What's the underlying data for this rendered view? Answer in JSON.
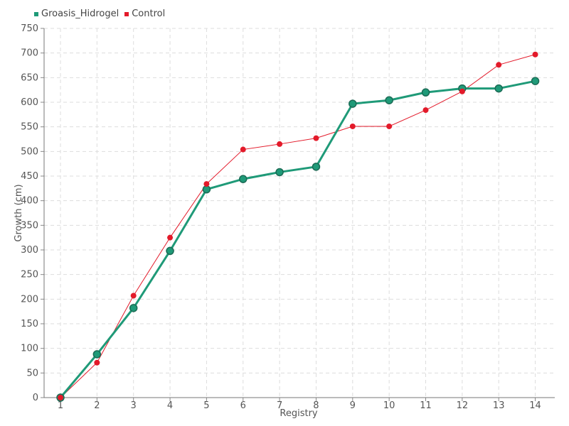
{
  "chart_data": {
    "type": "line",
    "xlabel": "Registry",
    "ylabel": "Growth (cm)",
    "categories": [
      "1",
      "2",
      "3",
      "4",
      "5",
      "6",
      "7",
      "8",
      "9",
      "10",
      "11",
      "12",
      "13",
      "14"
    ],
    "ylim": [
      0,
      750
    ],
    "yticks": [
      0,
      50,
      100,
      150,
      200,
      250,
      300,
      350,
      400,
      450,
      500,
      550,
      600,
      650,
      700,
      750
    ],
    "grid": true,
    "legend_position": "top-left",
    "series": [
      {
        "name": "Groasis_Hidrogel",
        "color": "#1f9a78",
        "values": [
          0,
          88,
          182,
          298,
          423,
          444,
          458,
          469,
          597,
          604,
          620,
          628,
          628,
          643
        ]
      },
      {
        "name": "Control",
        "color": "#e31a2a",
        "values": [
          0,
          71,
          207,
          325,
          434,
          504,
          515,
          527,
          551,
          551,
          584,
          622,
          676,
          697
        ]
      }
    ]
  }
}
